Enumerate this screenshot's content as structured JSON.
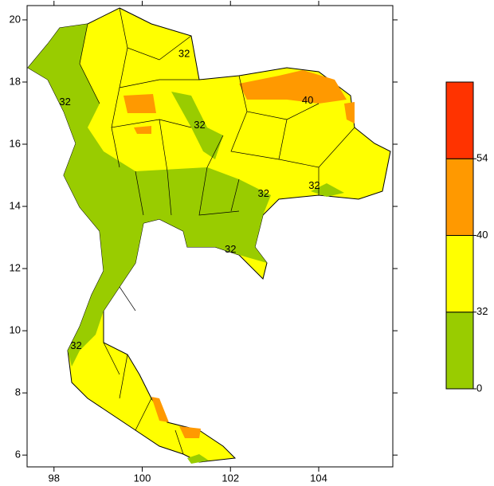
{
  "map": {
    "xlim": [
      97.39,
      105.68
    ],
    "ylim": [
      5.62,
      20.46
    ],
    "xticks": [
      98,
      100,
      102,
      104
    ],
    "yticks": [
      6,
      8,
      10,
      12,
      14,
      16,
      18,
      20
    ],
    "contour_labels": [
      {
        "text": "32",
        "lon": 100.95,
        "lat": 18.9
      },
      {
        "text": "32",
        "lon": 98.25,
        "lat": 17.35
      },
      {
        "text": "40",
        "lon": 103.75,
        "lat": 17.4
      },
      {
        "text": "32",
        "lon": 101.3,
        "lat": 16.6
      },
      {
        "text": "32",
        "lon": 102.75,
        "lat": 14.4
      },
      {
        "text": "32",
        "lon": 103.9,
        "lat": 14.65
      },
      {
        "text": "32",
        "lon": 102.0,
        "lat": 12.6
      },
      {
        "text": "32",
        "lon": 98.5,
        "lat": 9.5
      }
    ]
  },
  "colorbar": {
    "levels": [
      0,
      32,
      40,
      54
    ],
    "colors": [
      "#99cc00",
      "#ffff00",
      "#ff9900",
      "#ff3300"
    ]
  }
}
